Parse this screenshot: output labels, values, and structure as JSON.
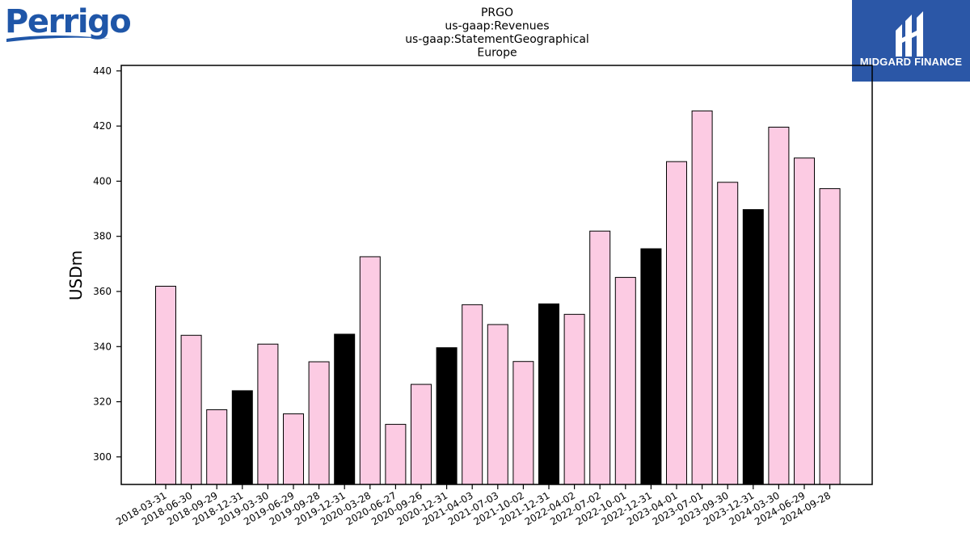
{
  "logos": {
    "left": {
      "text": "Perrigo",
      "color": "#1f56a8"
    },
    "right": {
      "text": "MIDGARD FINANCE",
      "background": "#2b57a7"
    }
  },
  "chart_data": {
    "type": "bar",
    "title_lines": [
      "PRGO",
      "us-gaap:Revenues",
      "us-gaap:StatementGeographical",
      "Europe"
    ],
    "ylabel": "USDm",
    "xlabel": "",
    "ylim": [
      290,
      442
    ],
    "yticks": [
      300,
      320,
      340,
      360,
      380,
      400,
      420,
      440
    ],
    "grid": false,
    "colors": {
      "regular": "#fccbe3",
      "year_end": "#000000",
      "edge": "#000000"
    },
    "categories": [
      "2018-03-31",
      "2018-06-30",
      "2018-09-29",
      "2018-12-31",
      "2019-03-30",
      "2019-06-29",
      "2019-09-28",
      "2019-12-31",
      "2020-03-28",
      "2020-06-27",
      "2020-09-26",
      "2020-12-31",
      "2021-04-03",
      "2021-07-03",
      "2021-10-02",
      "2021-12-31",
      "2022-04-02",
      "2022-07-02",
      "2022-10-01",
      "2022-12-31",
      "2023-04-01",
      "2023-07-01",
      "2023-09-30",
      "2023-12-31",
      "2024-03-30",
      "2024-06-29",
      "2024-09-28"
    ],
    "values": [
      361.9,
      344.1,
      317.1,
      324.0,
      340.9,
      315.6,
      334.5,
      344.5,
      372.6,
      311.8,
      326.3,
      339.6,
      355.2,
      348.0,
      334.6,
      355.5,
      351.7,
      381.9,
      365.1,
      375.5,
      407.1,
      425.5,
      399.6,
      389.7,
      419.6,
      408.4,
      397.3
    ],
    "highlight": [
      false,
      false,
      false,
      true,
      false,
      false,
      false,
      true,
      false,
      false,
      false,
      true,
      false,
      false,
      false,
      true,
      false,
      false,
      false,
      true,
      false,
      false,
      false,
      true,
      false,
      false,
      false
    ]
  }
}
